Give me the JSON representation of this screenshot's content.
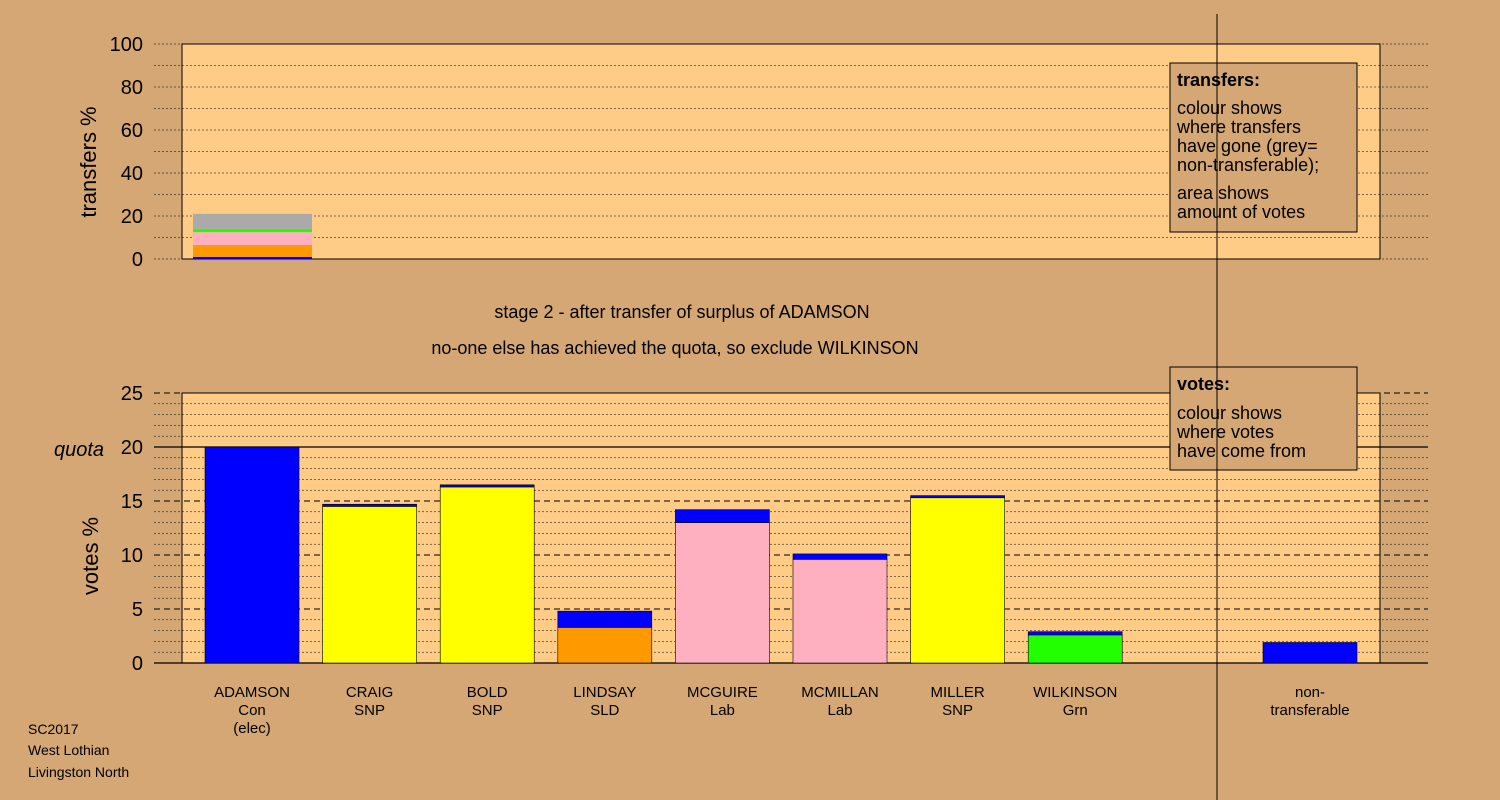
{
  "transfers_chart": {
    "ylabel": "transfers %",
    "yticks": [
      "0",
      "20",
      "40",
      "60",
      "80",
      "100"
    ],
    "legend": {
      "title": "transfers:",
      "lines1": [
        "colour shows",
        "where transfers",
        "have gone (grey=",
        "non-transferable);"
      ],
      "lines2": [
        "area shows",
        "amount of votes"
      ]
    }
  },
  "stage_text": {
    "line1": "stage 2 - after transfer of surplus of ADAMSON",
    "line2": "no-one else has achieved the quota, so exclude WILKINSON"
  },
  "votes_chart": {
    "ylabel": "votes %",
    "quota_label": "quota",
    "yticks": [
      "0",
      "5",
      "10",
      "15",
      "20",
      "25"
    ],
    "legend": {
      "title": "votes:",
      "lines": [
        "colour shows",
        "where votes",
        "have come from"
      ]
    }
  },
  "footer": {
    "line1": "SC2017",
    "line2": "West Lothian",
    "line3": "Livingston North"
  },
  "colors": {
    "Con": "#0000ff",
    "SNP": "#ffff00",
    "SLD": "#ff9900",
    "Lab": "#ffb0c0",
    "Grn": "#22ff00",
    "nontransferable": "#aaaaaa",
    "plot_bg": "#ffcc88",
    "page_bg": "#d4a774"
  },
  "chart_data": [
    {
      "type": "bar",
      "stacked": true,
      "ylabel": "transfers %",
      "ylim": [
        0,
        100
      ],
      "categories": [
        "ADAMSON"
      ],
      "series": [
        {
          "party": "Con",
          "values": [
            1
          ]
        },
        {
          "party": "SLD",
          "values": [
            5.5
          ]
        },
        {
          "party": "Lab",
          "values": [
            6
          ]
        },
        {
          "party": "Grn",
          "values": [
            1.5
          ]
        },
        {
          "party": "nontransferable",
          "values": [
            7
          ]
        }
      ]
    },
    {
      "type": "bar",
      "stacked": true,
      "ylabel": "votes %",
      "ylim": [
        0,
        25
      ],
      "quota": 20,
      "candidates": [
        {
          "name": "ADAMSON",
          "party": "Con",
          "note": "(elec)",
          "segments": [
            {
              "party": "Con",
              "value": 20.0
            }
          ]
        },
        {
          "name": "CRAIG",
          "party": "SNP",
          "segments": [
            {
              "party": "SNP",
              "value": 14.5
            },
            {
              "party": "Con",
              "value": 0.2
            }
          ]
        },
        {
          "name": "BOLD",
          "party": "SNP",
          "segments": [
            {
              "party": "SNP",
              "value": 16.3
            },
            {
              "party": "Con",
              "value": 0.2
            }
          ]
        },
        {
          "name": "LINDSAY",
          "party": "SLD",
          "segments": [
            {
              "party": "SLD",
              "value": 3.3
            },
            {
              "party": "Con",
              "value": 1.5
            }
          ]
        },
        {
          "name": "MCGUIRE",
          "party": "Lab",
          "segments": [
            {
              "party": "Lab",
              "value": 13.0
            },
            {
              "party": "Con",
              "value": 1.2
            }
          ]
        },
        {
          "name": "MCMILLAN",
          "party": "Lab",
          "segments": [
            {
              "party": "Lab",
              "value": 9.6
            },
            {
              "party": "Con",
              "value": 0.5
            }
          ]
        },
        {
          "name": "MILLER",
          "party": "SNP",
          "segments": [
            {
              "party": "SNP",
              "value": 15.3
            },
            {
              "party": "Con",
              "value": 0.2
            }
          ]
        },
        {
          "name": "WILKINSON",
          "party": "Grn",
          "segments": [
            {
              "party": "Grn",
              "value": 2.6
            },
            {
              "party": "Con",
              "value": 0.3
            }
          ]
        }
      ],
      "nontransferable": {
        "label1": "non-",
        "label2": "transferable",
        "segments": [
          {
            "party": "Con",
            "value": 1.9
          }
        ]
      }
    }
  ]
}
